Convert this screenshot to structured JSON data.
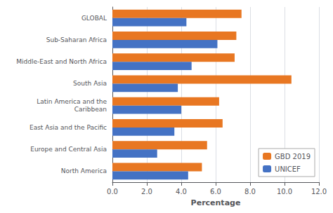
{
  "chart_data": {
    "type": "bar",
    "orientation": "horizontal",
    "categories": [
      "GLOBAL",
      "Sub-Saharan Africa",
      "Middle-East and North Africa",
      "South Asia",
      "Latin America and the\nCaribbean",
      "East Asia and the Pacific",
      "Europe and Central Asia",
      "North America"
    ],
    "series": [
      {
        "name": "GBD 2019",
        "color": "#E87722",
        "values": [
          7.5,
          7.2,
          7.1,
          10.4,
          6.2,
          6.4,
          5.5,
          5.2
        ]
      },
      {
        "name": "UNICEF",
        "color": "#4472C4",
        "values": [
          4.3,
          6.1,
          4.6,
          3.8,
          4.0,
          3.6,
          2.6,
          4.4
        ]
      }
    ],
    "xlabel": "Percentage",
    "xlim": [
      0,
      12.0
    ],
    "xticks": [
      {
        "value": 0,
        "label": "0.0"
      },
      {
        "value": 2,
        "label": "2.0"
      },
      {
        "value": 4,
        "label": "4.0"
      },
      {
        "value": 6,
        "label": "6.0"
      },
      {
        "value": 8,
        "label": "8.0"
      },
      {
        "value": 10,
        "label": "10.0"
      },
      {
        "value": 12,
        "label": "12.0"
      }
    ],
    "grid": true,
    "legend": "lower right"
  }
}
